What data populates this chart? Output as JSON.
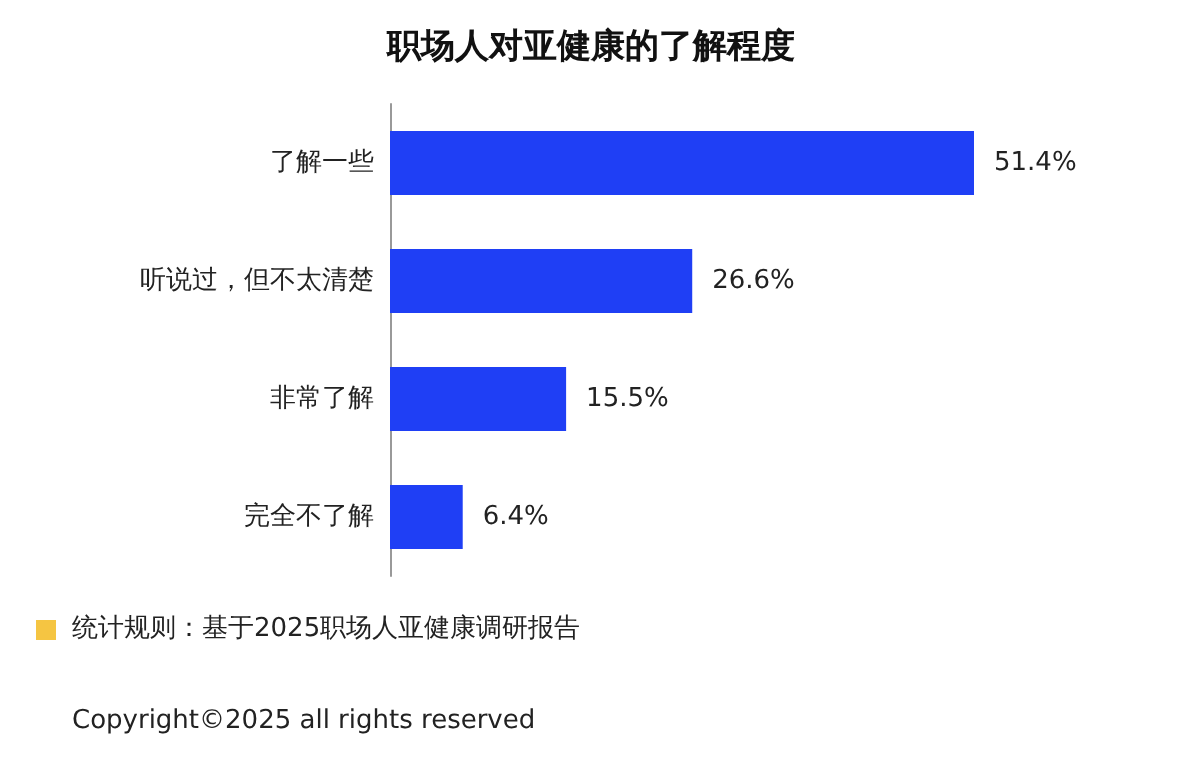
{
  "chart_data": {
    "type": "bar",
    "orientation": "horizontal",
    "title": "职场人对亚健康的了解程度",
    "categories": [
      "了解一些",
      "听说过，但不太清楚",
      "非常了解",
      "完全不了解"
    ],
    "values": [
      51.4,
      26.6,
      15.5,
      6.4
    ],
    "value_labels": [
      "51.4%",
      "26.6%",
      "15.5%",
      "6.4%"
    ],
    "color": "#1f3ff5",
    "annotations": [
      "统计规则：基于2025职场人亚健康调研报告",
      "Copyright©2025 all rights reserved"
    ]
  }
}
